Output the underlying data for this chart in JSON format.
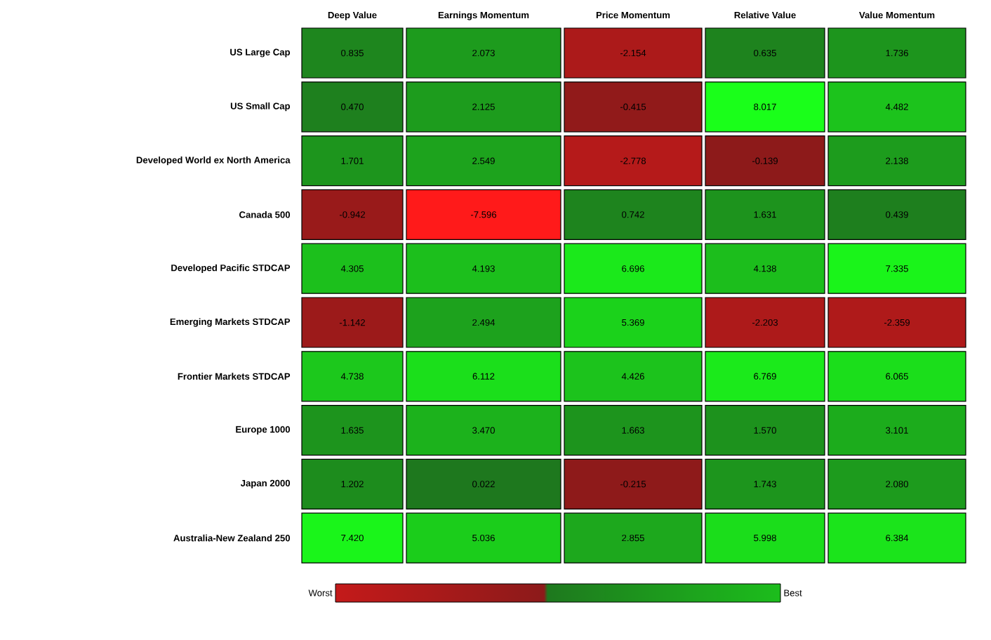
{
  "chart_data": {
    "type": "heatmap",
    "categories": [
      "Deep Value",
      "Earnings Momentum",
      "Price Momentum",
      "Relative Value",
      "Value Momentum"
    ],
    "y_categories": [
      "US Large Cap",
      "US Small Cap",
      "Developed World ex North America",
      "Canada 500",
      "Developed Pacific STDCAP",
      "Emerging Markets STDCAP",
      "Frontier Markets STDCAP",
      "Europe 1000",
      "Japan 2000",
      "Australia-New Zealand 250"
    ],
    "cells": [
      [
        0.835,
        2.073,
        -2.154,
        0.635,
        1.736
      ],
      [
        0.47,
        2.125,
        -0.415,
        8.017,
        4.482
      ],
      [
        1.701,
        2.549,
        -2.778,
        -0.139,
        2.138
      ],
      [
        -0.942,
        -7.596,
        0.742,
        1.631,
        0.439
      ],
      [
        4.305,
        4.193,
        6.696,
        4.138,
        7.335
      ],
      [
        -1.142,
        2.494,
        5.369,
        -2.203,
        -2.359
      ],
      [
        4.738,
        6.112,
        4.426,
        6.769,
        6.065
      ],
      [
        1.635,
        3.47,
        1.663,
        1.57,
        3.101
      ],
      [
        1.202,
        0.022,
        -0.215,
        1.743,
        2.08
      ],
      [
        7.42,
        5.036,
        2.855,
        5.998,
        6.384
      ]
    ],
    "cell_labels": [
      [
        "0.835",
        "2.073",
        "-2.154",
        "0.635",
        "1.736"
      ],
      [
        "0.470",
        "2.125",
        "-0.415",
        "8.017",
        "4.482"
      ],
      [
        "1.701",
        "2.549",
        "-2.778",
        "-0.139",
        "2.138"
      ],
      [
        "-0.942",
        "-7.596",
        "0.742",
        "1.631",
        "0.439"
      ],
      [
        "4.305",
        "4.193",
        "6.696",
        "4.138",
        "7.335"
      ],
      [
        "-1.142",
        "2.494",
        "5.369",
        "-2.203",
        "-2.359"
      ],
      [
        "4.738",
        "6.112",
        "4.426",
        "6.769",
        "6.065"
      ],
      [
        "1.635",
        "3.470",
        "1.663",
        "1.570",
        "3.101"
      ],
      [
        "1.202",
        "0.022",
        "-0.215",
        "1.743",
        "2.080"
      ],
      [
        "7.420",
        "5.036",
        "2.855",
        "5.998",
        "6.384"
      ]
    ],
    "annotations": [
      "Worst",
      "Best"
    ]
  }
}
